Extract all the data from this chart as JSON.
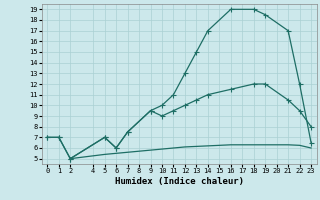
{
  "xlabel": "Humidex (Indice chaleur)",
  "xlim": [
    -0.5,
    23.5
  ],
  "ylim": [
    4.5,
    19.5
  ],
  "yticks": [
    5,
    6,
    7,
    8,
    9,
    10,
    11,
    12,
    13,
    14,
    15,
    16,
    17,
    18,
    19
  ],
  "xticks": [
    0,
    1,
    2,
    4,
    5,
    6,
    7,
    8,
    9,
    10,
    11,
    12,
    13,
    14,
    15,
    16,
    17,
    18,
    19,
    20,
    21,
    22,
    23
  ],
  "bg_color": "#cce8eb",
  "grid_color": "#aad0d4",
  "line_color": "#1e6e65",
  "line1_x": [
    0,
    1,
    2,
    5,
    6,
    7,
    9,
    10,
    11,
    12,
    13,
    14,
    16,
    18,
    19,
    21,
    22,
    23
  ],
  "line1_y": [
    7,
    7,
    5,
    7,
    6,
    7.5,
    9.5,
    10,
    11,
    13,
    15,
    17,
    19,
    19,
    18.5,
    17,
    12,
    6.5
  ],
  "line2_x": [
    0,
    1,
    2,
    5,
    6,
    7,
    9,
    10,
    11,
    12,
    13,
    14,
    16,
    18,
    19,
    21,
    22,
    23
  ],
  "line2_y": [
    7,
    7,
    5,
    7,
    6,
    7.5,
    9.5,
    9,
    9.5,
    10,
    10.5,
    11,
    11.5,
    12,
    12,
    10.5,
    9.5,
    8
  ],
  "line3_x": [
    2,
    5,
    6,
    7,
    9,
    10,
    11,
    12,
    13,
    14,
    15,
    16,
    17,
    18,
    19,
    20,
    21,
    22,
    23
  ],
  "line3_y": [
    5,
    5.4,
    5.5,
    5.6,
    5.8,
    5.9,
    6.0,
    6.1,
    6.15,
    6.2,
    6.25,
    6.3,
    6.3,
    6.3,
    6.3,
    6.3,
    6.3,
    6.25,
    6.0
  ]
}
